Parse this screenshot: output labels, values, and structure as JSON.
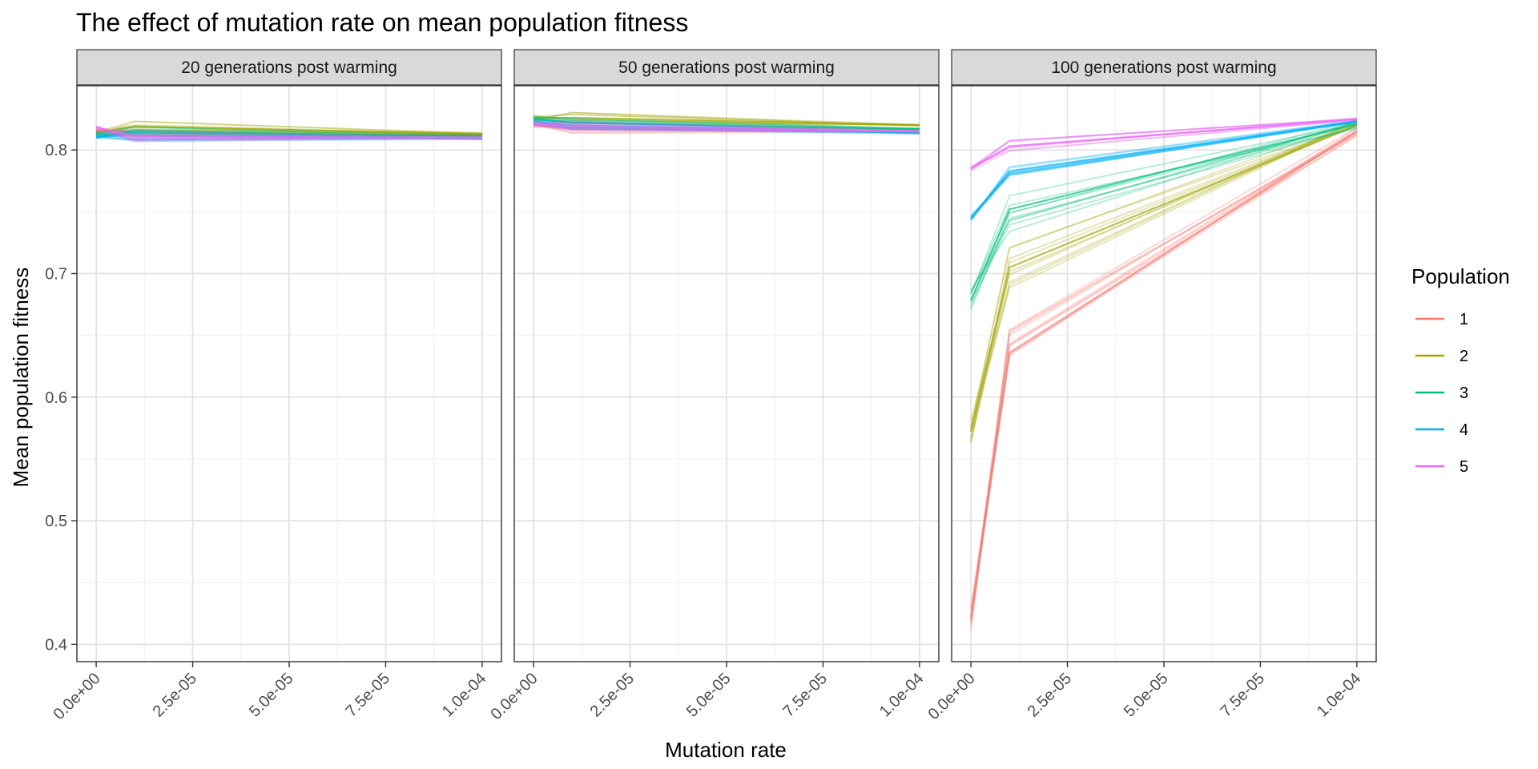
{
  "chart_data": {
    "type": "line",
    "title": "The effect of mutation rate on mean population fitness",
    "xlabel": "Mutation rate",
    "ylabel": "Mean population fitness",
    "xlim": [
      -5e-06,
      0.000105
    ],
    "ylim": [
      0.386,
      0.852
    ],
    "x_ticks": [
      0,
      2.5e-05,
      5e-05,
      7.5e-05,
      0.0001
    ],
    "x_tick_labels": [
      "0.0e+00",
      "2.5e-05",
      "5.0e-05",
      "7.5e-05",
      "1.0e-04"
    ],
    "y_ticks": [
      0.4,
      0.5,
      0.6,
      0.7,
      0.8
    ],
    "y_tick_labels": [
      "0.4",
      "0.5",
      "0.6",
      "0.7",
      "0.8"
    ],
    "x": [
      0,
      1e-05,
      0.0001
    ],
    "grid": true,
    "legend": {
      "title": "Population",
      "position": "right",
      "entries": [
        {
          "label": "1",
          "color": "#F8766D"
        },
        {
          "label": "2",
          "color": "#A3A500"
        },
        {
          "label": "3",
          "color": "#00BF7D"
        },
        {
          "label": "4",
          "color": "#00B0F6"
        },
        {
          "label": "5",
          "color": "#E76BF3"
        }
      ]
    },
    "panels": [
      {
        "label": "20 generations post warming",
        "series": [
          {
            "population": "1",
            "values": [
              0.816,
              0.813,
              0.812
            ]
          },
          {
            "population": "2",
            "values": [
              0.814,
              0.819,
              0.813
            ]
          },
          {
            "population": "3",
            "values": [
              0.812,
              0.814,
              0.811
            ]
          },
          {
            "population": "4",
            "values": [
              0.811,
              0.812,
              0.809
            ]
          },
          {
            "population": "5",
            "values": [
              0.818,
              0.811,
              0.81
            ]
          }
        ]
      },
      {
        "label": "50 generations post warming",
        "series": [
          {
            "population": "1",
            "values": [
              0.82,
              0.818,
              0.815
            ]
          },
          {
            "population": "2",
            "values": [
              0.826,
              0.826,
              0.82
            ]
          },
          {
            "population": "3",
            "values": [
              0.825,
              0.822,
              0.817
            ]
          },
          {
            "population": "4",
            "values": [
              0.823,
              0.82,
              0.814
            ]
          },
          {
            "population": "5",
            "values": [
              0.822,
              0.819,
              0.815
            ]
          }
        ]
      },
      {
        "label": "100 generations post warming",
        "series": [
          {
            "population": "1",
            "values": [
              0.42,
              0.636,
              0.815
            ]
          },
          {
            "population": "2",
            "values": [
              0.572,
              0.705,
              0.82
            ]
          },
          {
            "population": "3",
            "values": [
              0.678,
              0.752,
              0.821
            ]
          },
          {
            "population": "4",
            "values": [
              0.745,
              0.783,
              0.823
            ]
          },
          {
            "population": "5",
            "values": [
              0.785,
              0.803,
              0.825
            ]
          }
        ]
      }
    ]
  }
}
